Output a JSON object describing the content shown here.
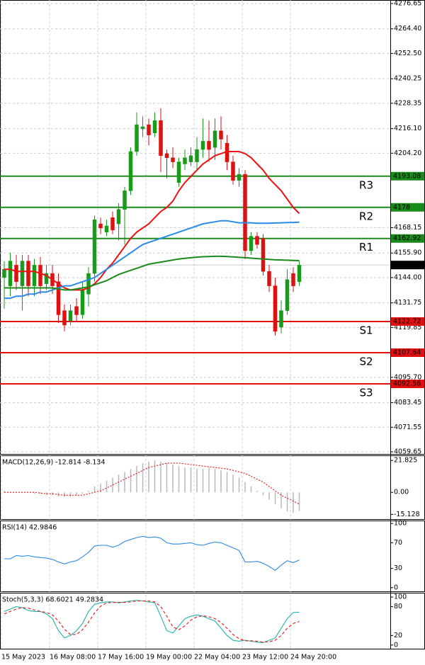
{
  "chart_data": [
    {
      "type": "candlestick",
      "categories": [
        "15 May 2023",
        null,
        null,
        null,
        null,
        null,
        null,
        null,
        "16 May 08:00",
        null,
        null,
        null,
        null,
        null,
        null,
        null,
        "17 May 16:00",
        null,
        null,
        null,
        null,
        null,
        null,
        null,
        "19 May 00:00",
        null,
        null,
        null,
        null,
        null,
        null,
        null,
        "22 May 04:00",
        null,
        null,
        null,
        null,
        null,
        null,
        null,
        "23 May 12:00",
        null,
        null,
        null,
        null,
        null,
        null,
        null,
        "24 May 20:00",
        null
      ],
      "open": [
        4144,
        4140,
        4150,
        4140,
        4152,
        4140,
        4150,
        4141,
        4146,
        4142,
        4128,
        4123,
        4130,
        4126,
        4136,
        4146,
        4170,
        4166,
        4173,
        4170,
        4177,
        4186,
        4205,
        4216,
        4218,
        4214,
        4220,
        4204,
        4202,
        4190,
        4199,
        4200,
        4200,
        4206,
        4210,
        4207,
        4215,
        4209,
        4200,
        4191,
        4194,
        4157,
        4164,
        4163,
        4147,
        4140,
        4120,
        4128,
        4146,
        4142
      ],
      "high": [
        4152,
        4156,
        4155,
        4155,
        4155,
        4153,
        4154,
        4150,
        4150,
        4146,
        4131,
        4131,
        4134,
        4142,
        4149,
        4174,
        4173,
        4172,
        4176,
        4180,
        4188,
        4207,
        4224,
        4222,
        4221,
        4224,
        4226,
        4206,
        4207,
        4202,
        4206,
        4207,
        4212,
        4221,
        4220,
        4221,
        4222,
        4213,
        4203,
        4197,
        4196,
        4166,
        4166,
        4165,
        4150,
        4144,
        4133,
        4148,
        4149,
        4152
      ],
      "low": [
        4129,
        4135,
        4138,
        4128,
        4135,
        4135,
        4136,
        4138,
        4136,
        4122,
        4118,
        4121,
        4123,
        4124,
        4130,
        4142,
        4165,
        4164,
        4165,
        4162,
        4160,
        4184,
        4203,
        4212,
        4208,
        4212,
        4195,
        4192,
        4197,
        4188,
        4196,
        4198,
        4196,
        4202,
        4200,
        4201,
        4206,
        4196,
        4189,
        4188,
        4153,
        4155,
        4158,
        4145,
        4137,
        4116,
        4117,
        4126,
        4137,
        4140
      ],
      "close": [
        4148,
        4152,
        4142,
        4152,
        4140,
        4150,
        4140,
        4146,
        4140,
        4126,
        4121,
        4128,
        4126,
        4138,
        4146,
        4172,
        4168,
        4169,
        4167,
        4177,
        4186,
        4205,
        4218,
        4217,
        4213,
        4220,
        4203,
        4202,
        4200,
        4200,
        4202,
        4203,
        4206,
        4210,
        4206,
        4215,
        4211,
        4200,
        4191,
        4194,
        4157,
        4164,
        4160,
        4147,
        4140,
        4118,
        4128,
        4143,
        4140,
        4150
      ],
      "up_color": "#1a9a1a",
      "down_color": "#dd1111",
      "ylim": [
        4058.62,
        4278.36
      ],
      "yticks": [
        4276.65,
        {
          "value": 4264.4,
          "label": "4264.40"
        },
        {
          "value": 4252.5,
          "label": "4252.50"
        },
        4240.25,
        4228.35,
        {
          "value": 4216.1,
          "label": "4216.10"
        },
        {
          "value": 4204.2,
          "label": "4204.20"
        },
        4168.15,
        {
          "value": 4155.9,
          "label": "4155.90"
        },
        {
          "value": 4144,
          "label": "4144.00"
        },
        4131.75,
        4119.85,
        {
          "value": 4095.7,
          "label": "4095.70"
        },
        4083.45,
        4071.55,
        4059.65
      ],
      "grid": true,
      "levels": [
        {
          "label": "R3",
          "value": 4193.08,
          "color": "#1a8a1a"
        },
        {
          "label": "R2",
          "value": 4178.0,
          "color": "#1a8a1a"
        },
        {
          "label": "R1",
          "value": 4162.92,
          "color": "#1a8a1a"
        },
        {
          "label": "S1",
          "value": 4122.72,
          "color": "#e01010"
        },
        {
          "label": "S2",
          "value": 4107.64,
          "color": "#e01010"
        },
        {
          "label": "S3",
          "value": 4092.56,
          "color": "#e01010"
        }
      ],
      "current": {
        "value": 4150.08,
        "color": "#c8d0d8"
      },
      "series": [
        {
          "color": "#ee1111",
          "values": [
            4148,
            4148,
            4147,
            4147,
            4147,
            4147,
            4146,
            4145,
            4143,
            4141,
            4139,
            4138,
            4138,
            4138,
            4139,
            4141,
            4144,
            4148,
            4151,
            4155,
            4159,
            4163,
            4166,
            4168,
            4170,
            4173,
            4176,
            4178,
            4181,
            4186,
            4190,
            4193,
            4196,
            4199,
            4201,
            4203,
            4204,
            4205,
            4205,
            4205,
            4204,
            4202,
            4199,
            4196,
            4192,
            4189,
            4186,
            4182,
            4178,
            4175
          ]
        },
        {
          "color": "#2a8ae8",
          "values": [
            4134,
            4134,
            4135,
            4135,
            4136,
            4136,
            4137,
            4137,
            4138,
            4139,
            4140,
            4140,
            4141,
            4142,
            4143,
            4144,
            4146,
            4148,
            4150,
            4152,
            4154,
            4156,
            4158,
            4160,
            4161,
            4162,
            4163,
            4164,
            4165,
            4166,
            4167,
            4168,
            4169,
            4170,
            4170.5,
            4171,
            4171.5,
            4171.5,
            4171,
            4170.5,
            4170.5,
            4170.5,
            4170.3,
            4170.3,
            4170.3,
            4170.4,
            4170.5,
            4170.6,
            4170.7,
            4170.8
          ]
        },
        {
          "color": "#1a8a1a",
          "values": [
            4139,
            4139,
            4139,
            4139,
            4139,
            4139,
            4139,
            4139,
            4139,
            4138.5,
            4138,
            4138,
            4138.5,
            4139,
            4139.5,
            4140.5,
            4141.5,
            4142.5,
            4144,
            4145.5,
            4146.5,
            4147.5,
            4148.5,
            4149.5,
            4150.5,
            4151,
            4151.5,
            4152,
            4152.5,
            4153,
            4153.3,
            4153.6,
            4153.9,
            4154.1,
            4154.2,
            4154.3,
            4154.3,
            4154.2,
            4154,
            4153.8,
            4153.6,
            4153.4,
            4153.2,
            4153,
            4152.8,
            4152.6,
            4152.5,
            4152.4,
            4152.3,
            4152.2
          ]
        }
      ]
    },
    {
      "type": "macd",
      "title": "MACD(12,26,9) -12.814 -8.134",
      "ylim": [
        -18.35,
        25.3
      ],
      "yticks": [
        21.825,
        {
          "value": 0,
          "label": "0.00"
        },
        -15.128
      ],
      "series": [
        {
          "style": "histogram",
          "color": "#b8b8b8",
          "values": [
            1,
            0,
            0,
            0,
            0,
            -1,
            -1,
            -2,
            -2,
            -3,
            -3,
            -3,
            -2,
            -1,
            1,
            4,
            6,
            8,
            10,
            12,
            14,
            16,
            18,
            20,
            21,
            22,
            21,
            20,
            19,
            18,
            17,
            17,
            16,
            16,
            17,
            16,
            15,
            14,
            12,
            10,
            7,
            4,
            1,
            -2,
            -5,
            -8,
            -11,
            -13,
            -14,
            -12.814
          ]
        },
        {
          "style": "dotted",
          "color": "#ee1111",
          "values": [
            0,
            0,
            0,
            0,
            0,
            0,
            -0.5,
            -1,
            -1,
            -1.5,
            -2,
            -2,
            -2,
            -2,
            -1,
            0,
            1,
            3,
            5,
            7,
            9,
            11,
            13,
            15,
            17,
            18,
            19,
            20,
            20,
            20,
            19.5,
            19,
            18.5,
            18,
            17.5,
            17,
            16.5,
            16,
            15,
            14,
            13,
            11,
            9,
            7,
            4,
            1,
            -2,
            -4,
            -6,
            -8.134
          ]
        }
      ]
    },
    {
      "type": "line",
      "title": "RSI(14) 42.9846",
      "ylim": [
        -5.75,
        104.6
      ],
      "yticks": [
        100,
        70,
        30,
        0
      ],
      "series": [
        {
          "color": "#2a8ae8",
          "values": [
            45,
            45,
            50,
            49,
            50,
            48,
            47,
            46,
            44,
            40,
            37,
            40,
            42,
            48,
            55,
            65,
            66,
            66,
            63,
            66,
            72,
            75,
            78,
            80,
            78,
            79,
            77,
            70,
            68,
            68,
            69,
            70,
            67,
            66,
            69,
            71,
            70,
            66,
            62,
            58,
            40,
            40,
            41,
            38,
            33,
            27,
            35,
            42,
            39,
            42.9846
          ]
        }
      ]
    },
    {
      "type": "line",
      "title": "Stoch(5,3,3) 68.6021 49.2834",
      "ylim": [
        -7.6,
        109
      ],
      "yticks": [
        100,
        80,
        20,
        0
      ],
      "series": [
        {
          "color": "#20b2aa",
          "values": [
            70,
            75,
            80,
            78,
            72,
            70,
            70,
            65,
            55,
            30,
            15,
            20,
            30,
            45,
            70,
            85,
            88,
            90,
            90,
            88,
            90,
            92,
            93,
            92,
            90,
            88,
            60,
            30,
            25,
            40,
            55,
            60,
            63,
            60,
            55,
            50,
            35,
            20,
            10,
            8,
            10,
            8,
            6,
            5,
            10,
            15,
            35,
            55,
            68,
            68.6021
          ]
        },
        {
          "style": "dashed",
          "color": "#ee1111",
          "values": [
            65,
            70,
            75,
            78,
            77,
            73,
            70,
            68,
            63,
            50,
            33,
            22,
            22,
            32,
            48,
            67,
            81,
            88,
            89,
            89,
            89,
            90,
            92,
            92,
            92,
            90,
            80,
            60,
            38,
            32,
            40,
            52,
            59,
            61,
            59,
            55,
            47,
            35,
            22,
            13,
            9,
            9,
            8,
            6,
            7,
            10,
            20,
            35,
            45,
            49.2834
          ]
        }
      ]
    }
  ]
}
